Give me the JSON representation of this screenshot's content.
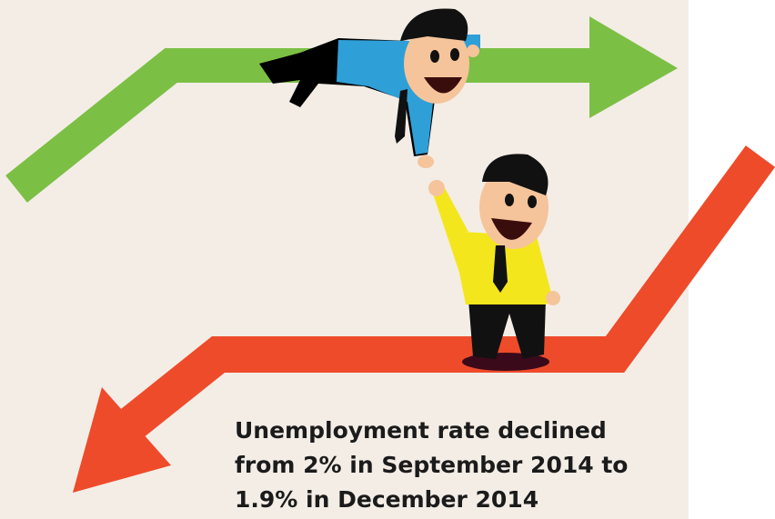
{
  "caption": {
    "lines": [
      "Unemployment rate declined",
      "from 2% in September 2014 to",
      "1.9% in December 2014"
    ]
  }
}
